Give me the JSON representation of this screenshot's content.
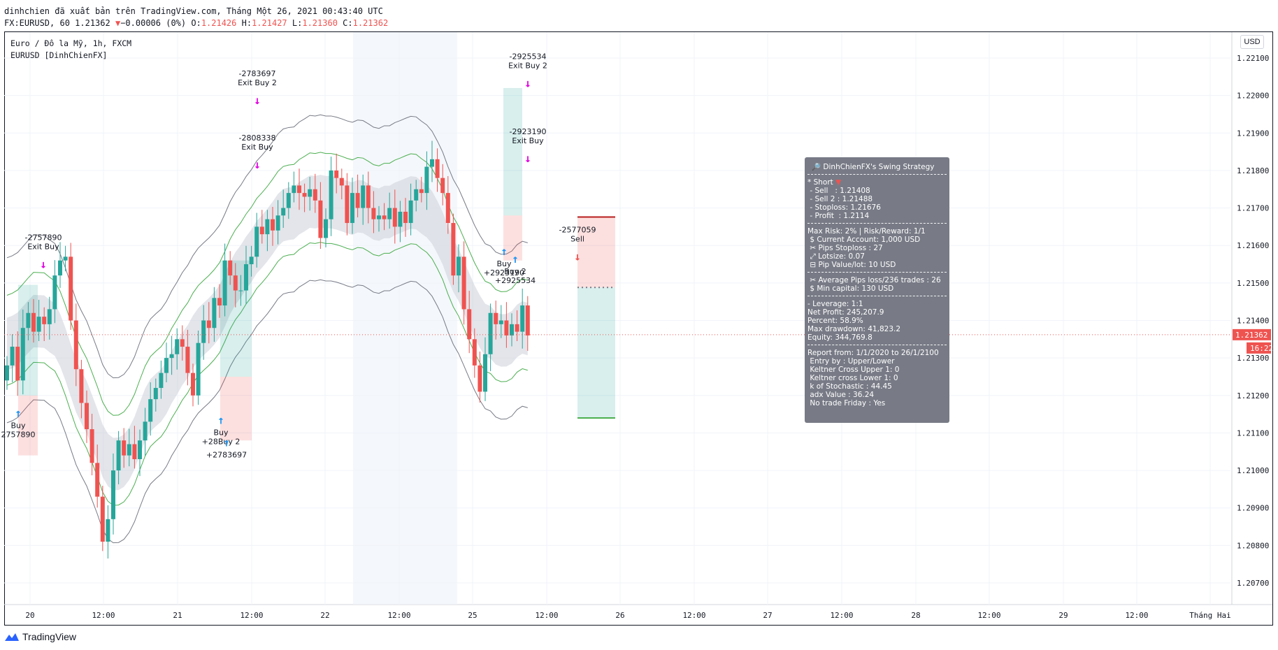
{
  "header": {
    "line1": "dinhchien đã xuất bản trên TradingView.com, Tháng Một 26, 2021 00:43:40 UTC",
    "symbol": "FX:EURUSD, 60",
    "last": "1.21362",
    "arrow": "▼",
    "change": "−0.00006 (0%)",
    "o_label": "O:",
    "o": "1.21426",
    "h_label": "H:",
    "h": "1.21427",
    "l_label": "L:",
    "l": "1.21360",
    "c_label": "C:",
    "c": "1.21362"
  },
  "chart_meta": {
    "title": "Euro / Đô la Mỹ, 1h, FXCM",
    "indicator": "EURUSD [DinhChienFX]"
  },
  "currency_button": "USD",
  "footer": {
    "brand": "TradingView"
  },
  "colors": {
    "up": "#26a69a",
    "down": "#ef5350",
    "marker": "#e100e1",
    "arrow_up": "#2196f3",
    "band_line": "#4caf50",
    "envelope_line": "#787b86",
    "price_label": "#ef5350"
  },
  "price_label": "1.21362",
  "countdown_label": "16:22",
  "info_panel": {
    "title": "🔎 DinhChienFX's Swing Strategy",
    "short_header": "* Short",
    "short_icon": "▼",
    "trade_lines": [
      " - Sell   : 1.21408",
      " - Sell 2 : 1.21488",
      " - Stoploss: 1.21676",
      " - Profit  : 1.2114"
    ],
    "risk_lines": [
      "Max Risk: 2% | Risk/Reward: 1/1",
      " $ Current Account: 1,000 USD",
      " ✂ Pips Stoploss : 27",
      " ⤢ Lotsize: 0.07",
      " ⊟ Pip Value/lot: 10 USD"
    ],
    "avg_lines": [
      " ✂ Average Pips loss/236 trades : 26",
      " $ Min capital: 130 USD"
    ],
    "stats_lines": [
      "- Leverage: 1:1",
      "Net Profit: 245,207.9",
      "Percent: 58.9%",
      "Max drawdown: 41,823.2",
      "Equity: 344,769.8"
    ],
    "report_lines": [
      "Report from: 1/1/2020 to 26/1/2100",
      " Entry by : Upper/Lower",
      " Keltner Cross Upper 1: 0",
      " Keltner cross Lower 1: 0",
      " k of Stochastic : 44.45",
      " adx Value : 36.24",
      " No trade Friday : Yes"
    ]
  },
  "chart_data": {
    "type": "candlestick",
    "title": "Euro / Đô la Mỹ, 1h, FXCM",
    "y_ticks": [
      "1.22100",
      "1.22000",
      "1.21900",
      "1.21800",
      "1.21700",
      "1.21600",
      "1.21500",
      "1.21400",
      "1.21300",
      "1.21200",
      "1.21100",
      "1.21000",
      "1.20900",
      "1.20800",
      "1.20700"
    ],
    "ylim": [
      1.2065,
      1.2215
    ],
    "x_ticks": [
      "20",
      "12:00",
      "21",
      "12:00",
      "22",
      "12:00",
      "25",
      "12:00",
      "26",
      "12:00",
      "27",
      "12:00",
      "28",
      "12:00",
      "29",
      "12:00",
      "Tháng Hai"
    ],
    "grid": true,
    "closes": [
      1.2128,
      1.2133,
      1.2124,
      1.2138,
      1.2142,
      1.2137,
      1.2141,
      1.2139,
      1.2143,
      1.2152,
      1.2156,
      1.2157,
      1.214,
      1.2127,
      1.2118,
      1.2111,
      1.2102,
      1.2093,
      1.2081,
      1.2087,
      1.21,
      1.2108,
      1.2104,
      1.2107,
      1.2103,
      1.2108,
      1.2113,
      1.2119,
      1.2122,
      1.2126,
      1.213,
      1.2131,
      1.2135,
      1.2133,
      1.2126,
      1.212,
      1.2134,
      1.214,
      1.2138,
      1.2146,
      1.2144,
      1.2156,
      1.2152,
      1.2148,
      1.2148,
      1.2155,
      1.2157,
      1.2165,
      1.2163,
      1.2167,
      1.2164,
      1.2168,
      1.217,
      1.2174,
      1.2176,
      1.2174,
      1.2173,
      1.2175,
      1.2172,
      1.2162,
      1.2167,
      1.218,
      1.2178,
      1.2176,
      1.2166,
      1.2174,
      1.217,
      1.2176,
      1.217,
      1.2167,
      1.2168,
      1.2167,
      1.217,
      1.2165,
      1.2169,
      1.2166,
      1.2172,
      1.2175,
      1.2174,
      1.2181,
      1.2183,
      1.2178,
      1.2174,
      1.2166,
      1.2152,
      1.2157,
      1.2143,
      1.2135,
      1.2128,
      1.2121,
      1.2131,
      1.2142,
      1.2139,
      1.214,
      1.2136,
      1.2139,
      1.2137,
      1.2144,
      1.2136
    ],
    "markers": [
      {
        "label": "Buy",
        "sub": "2757890",
        "side": "buy"
      },
      {
        "label": "-2757890",
        "sub": "Exit Buy",
        "side": "exit"
      },
      {
        "label": "Buy",
        "sub": "+28Buy 2",
        "side": "buy"
      },
      {
        "label": "+2783697",
        "sub": "",
        "side": "buy2"
      },
      {
        "label": "-2783697",
        "sub": "Exit Buy 2",
        "side": "exit"
      },
      {
        "label": "-2808338",
        "sub": "Exit Buy",
        "side": "exit"
      },
      {
        "label": "Buy",
        "sub": "+2923190",
        "side": "buy"
      },
      {
        "label": "Buy 2",
        "sub": "+2925534",
        "side": "buy2"
      },
      {
        "label": "-2925534",
        "sub": "Exit Buy 2",
        "side": "exit"
      },
      {
        "label": "-2923190",
        "sub": "Exit Buy",
        "side": "exit"
      },
      {
        "label": "-2577059",
        "sub": "Sell",
        "side": "sell"
      }
    ]
  }
}
